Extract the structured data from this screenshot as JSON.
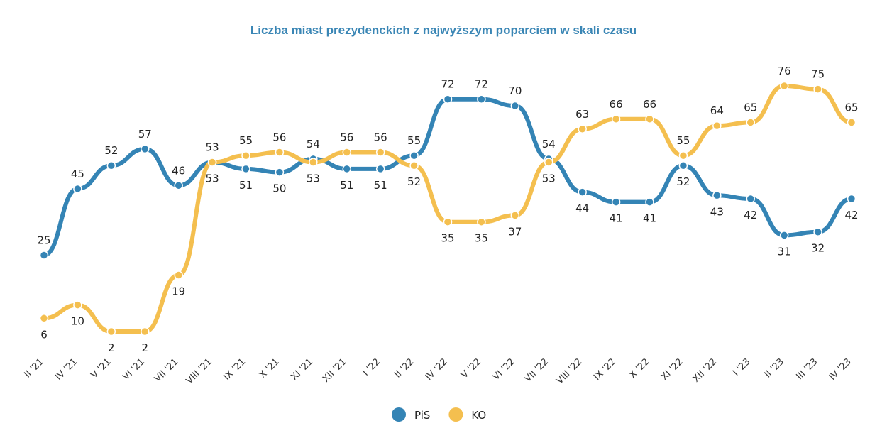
{
  "chart_data": {
    "type": "line",
    "title": "Liczba miast prezydenckich z najwyższym poparciem w skali czasu",
    "categories": [
      "II '21",
      "IV '21",
      "V '21",
      "VI '21",
      "VII '21",
      "VIII '21",
      "IX '21",
      "X '21",
      "XI '21",
      "XII '21",
      "I '22",
      "II '22",
      "IV '22",
      "V '22",
      "VI '22",
      "VII '22",
      "VIII '22",
      "IX '22",
      "X '22",
      "XI '22",
      "XII '22",
      "I '23",
      "II '23",
      "III '23",
      "IV '23"
    ],
    "series": [
      {
        "name": "PiS",
        "color": "#3484b5",
        "values": [
          25,
          45,
          52,
          57,
          46,
          53,
          51,
          50,
          54,
          51,
          51,
          55,
          72,
          72,
          70,
          54,
          44,
          41,
          41,
          52,
          43,
          42,
          31,
          32,
          42
        ]
      },
      {
        "name": "KO",
        "color": "#f4bf4f",
        "values": [
          6,
          10,
          2,
          2,
          19,
          53,
          55,
          56,
          53,
          56,
          56,
          52,
          35,
          35,
          37,
          53,
          63,
          66,
          66,
          55,
          64,
          65,
          76,
          75,
          65
        ]
      }
    ],
    "legend": "bottom"
  }
}
